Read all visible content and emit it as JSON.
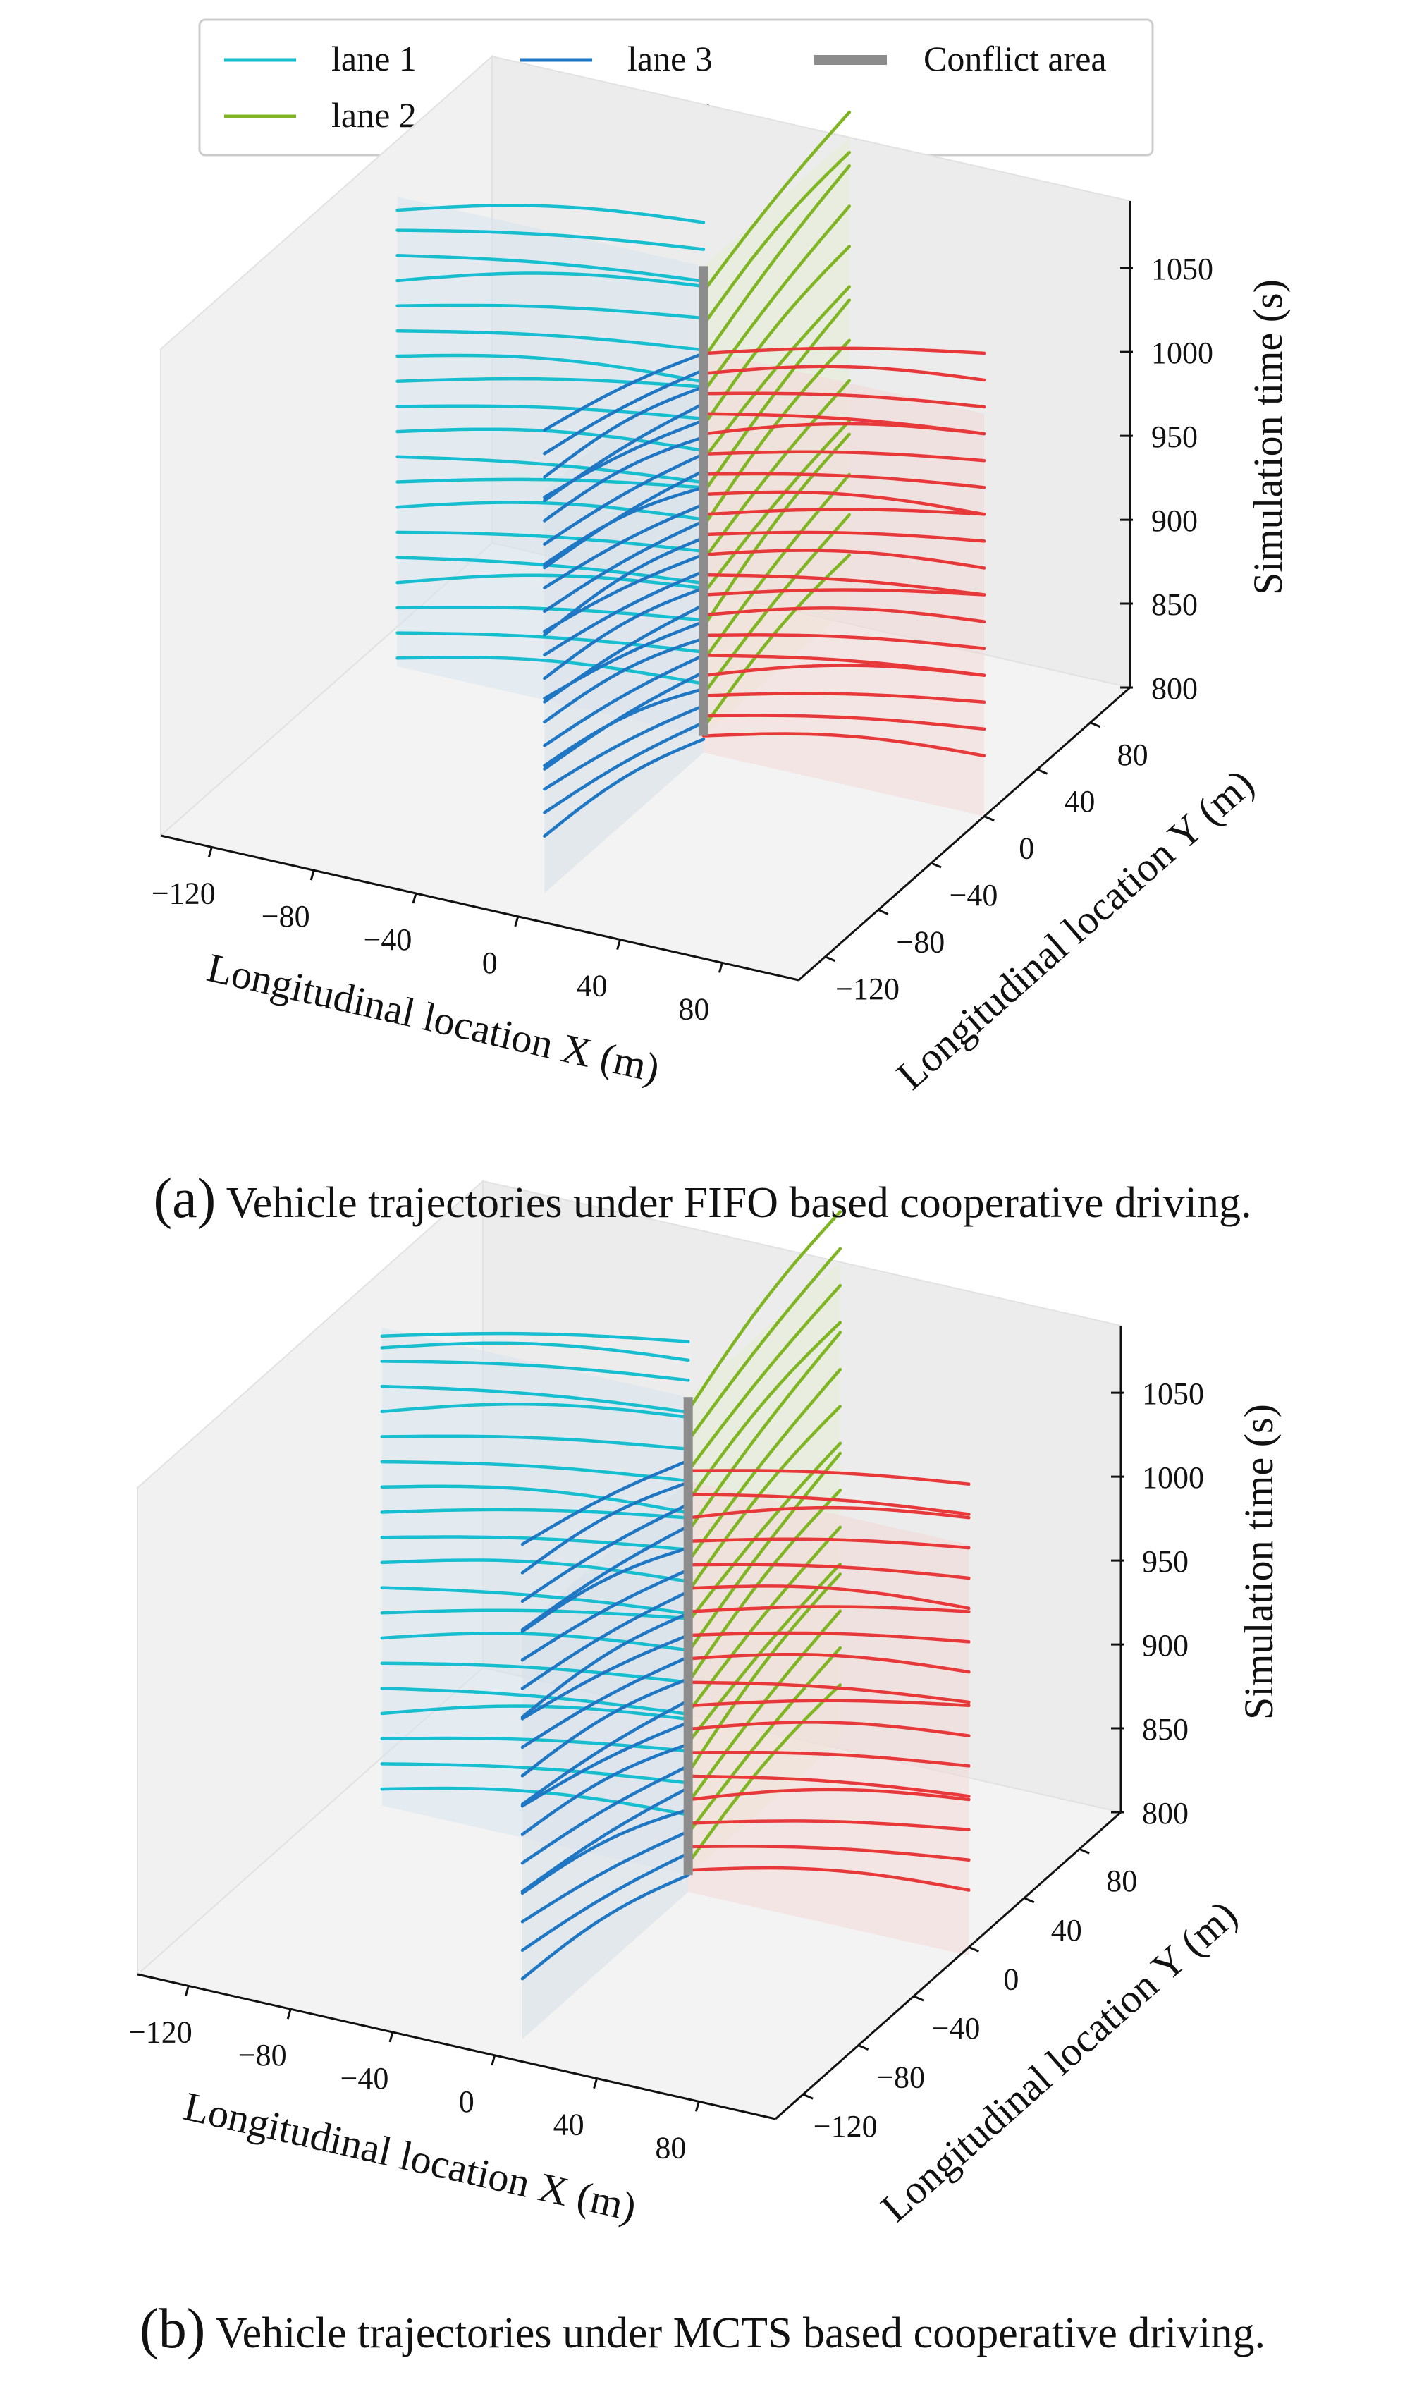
{
  "legend": {
    "entries": [
      {
        "label": "lane 1",
        "color": "#17becf",
        "style": "line"
      },
      {
        "label": "lane 2",
        "color": "#7fb522",
        "style": "line"
      },
      {
        "label": "lane 3",
        "color": "#1f77c4",
        "style": "line"
      },
      {
        "label": "lane 4",
        "color": "#e8393a",
        "style": "line"
      },
      {
        "label": "Conflict area",
        "color": "#8c8c8c",
        "style": "thick-line"
      }
    ]
  },
  "captions": {
    "a": {
      "tag": "(a)",
      "text": " Vehicle trajectories under FIFO based cooperative driving."
    },
    "b": {
      "tag": "(b)",
      "text": " Vehicle trajectories under MCTS based cooperative driving."
    }
  },
  "chart_data": [
    {
      "type": "line",
      "panel": "a",
      "projection": "3d",
      "xlabel": "Longitudinal location X (m)",
      "ylabel": "Longitudinal location Y (m)",
      "zlabel": "Simulation time (s)",
      "xticks": [
        "−120",
        "−80",
        "−40",
        "0",
        "40",
        "80"
      ],
      "yticks": [
        "−120",
        "−80",
        "−40",
        "0",
        "40",
        "80"
      ],
      "zticks": [
        "800",
        "850",
        "900",
        "950",
        "1000",
        "1050"
      ],
      "xlim": [
        -140,
        110
      ],
      "ylim": [
        -140,
        110
      ],
      "zlim": [
        800,
        1090
      ],
      "conflict_area": {
        "x": 0,
        "y": 0,
        "t_range": [
          810,
          1090
        ]
      },
      "series": [
        {
          "name": "lane 1",
          "color": "#17becf",
          "axis": "x",
          "from": -120,
          "to": 0,
          "t_start": [
            815,
            830,
            845,
            860,
            875,
            890,
            905,
            920,
            935,
            950,
            965,
            980,
            995,
            1010,
            1025,
            1040,
            1055,
            1070,
            1082
          ]
        },
        {
          "name": "lane 2",
          "color": "#7fb522",
          "axis": "y",
          "from": 0,
          "to": 110,
          "t_start": [
            815,
            835,
            855,
            875,
            895,
            915,
            935,
            955,
            975,
            995,
            1015,
            1035,
            1055,
            1075
          ]
        },
        {
          "name": "lane 3",
          "color": "#1f77c4",
          "axis": "y",
          "from": 0,
          "to": -120,
          "t_start": [
            808,
            818,
            828,
            838,
            848,
            858,
            868,
            878,
            888,
            898,
            908,
            918,
            928,
            938,
            948,
            958,
            968,
            978,
            988,
            998,
            1008,
            1018,
            1028,
            1038
          ]
        },
        {
          "name": "lane 4",
          "color": "#e8393a",
          "axis": "x",
          "from": 0,
          "to": 110,
          "t_start": [
            810,
            822,
            834,
            846,
            858,
            870,
            882,
            894,
            906,
            918,
            930,
            942,
            954,
            966,
            978,
            990,
            1002,
            1014,
            1026,
            1038
          ]
        }
      ]
    },
    {
      "type": "line",
      "panel": "b",
      "projection": "3d",
      "xlabel": "Longitudinal location X (m)",
      "ylabel": "Longitudinal location Y (m)",
      "zlabel": "Simulation time (s)",
      "xticks": [
        "−120",
        "−80",
        "−40",
        "0",
        "40",
        "80"
      ],
      "yticks": [
        "−120",
        "−80",
        "−40",
        "0",
        "40",
        "80"
      ],
      "zticks": [
        "800",
        "850",
        "900",
        "950",
        "1000",
        "1050"
      ],
      "xlim": [
        -140,
        110
      ],
      "ylim": [
        -140,
        110
      ],
      "zlim": [
        800,
        1090
      ],
      "conflict_area": {
        "x": 0,
        "y": 0,
        "t_range": [
          805,
          1090
        ]
      },
      "series": [
        {
          "name": "lane 1",
          "color": "#17becf",
          "axis": "x",
          "from": -120,
          "to": 0,
          "t_start": [
            815,
            830,
            845,
            860,
            875,
            890,
            905,
            920,
            935,
            950,
            965,
            980,
            995,
            1010,
            1025,
            1040,
            1055,
            1070,
            1078,
            1085
          ]
        },
        {
          "name": "lane 2",
          "color": "#7fb522",
          "axis": "y",
          "from": 0,
          "to": 110,
          "t_start": [
            812,
            830,
            848,
            866,
            884,
            902,
            920,
            938,
            956,
            974,
            992,
            1010,
            1028,
            1046,
            1064,
            1082
          ]
        },
        {
          "name": "lane 3",
          "color": "#1f77c4",
          "axis": "y",
          "from": 0,
          "to": -120,
          "t_start": [
            805,
            818,
            831,
            844,
            857,
            870,
            883,
            896,
            909,
            922,
            935,
            948,
            961,
            974,
            987,
            1000,
            1013,
            1026,
            1039,
            1052
          ]
        },
        {
          "name": "lane 4",
          "color": "#e8393a",
          "axis": "x",
          "from": 0,
          "to": 110,
          "t_start": [
            808,
            822,
            836,
            850,
            864,
            878,
            892,
            906,
            920,
            934,
            948,
            962,
            976,
            990,
            1004,
            1018,
            1032,
            1046
          ]
        }
      ]
    }
  ]
}
